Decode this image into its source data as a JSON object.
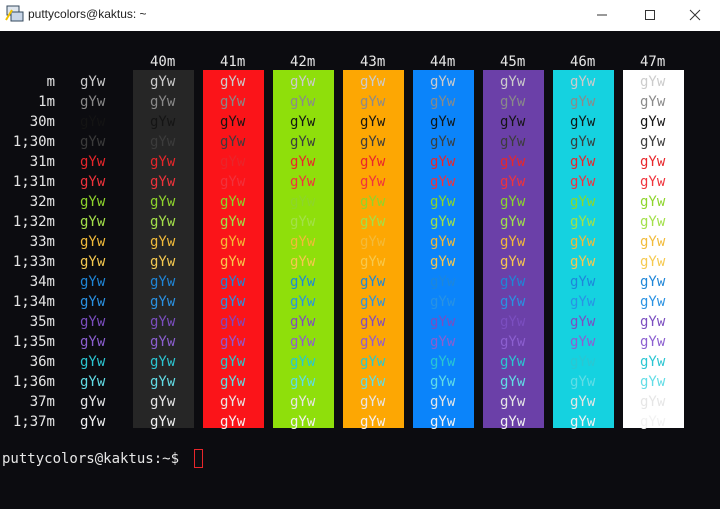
{
  "window": {
    "title": "puttycolors@kaktus: ~"
  },
  "terminal": {
    "column_headers": [
      "40m",
      "41m",
      "42m",
      "43m",
      "44m",
      "45m",
      "46m",
      "47m"
    ],
    "column_colors": [
      "#262626",
      "#fb1419",
      "#8fdf0b",
      "#fda703",
      "#0b84fa",
      "#6b40a8",
      "#15d2e0",
      "#ffffff"
    ],
    "rows": [
      {
        "label": "m",
        "color": "#cccccc",
        "cells": [
          "gYw",
          "gYw",
          "gYw",
          "gYw",
          "gYw",
          "gYw",
          "gYw",
          "gYw",
          "gYw"
        ]
      },
      {
        "label": "1m",
        "color": "#8a8a8a",
        "cells": [
          "gYw",
          "gYw",
          "gYw",
          "gYw",
          "gYw",
          "gYw",
          "gYw",
          "gYw",
          "gYw"
        ]
      },
      {
        "label": "30m",
        "color": "#141414",
        "cells": [
          "gYw",
          "gYw",
          "gYw",
          "gYw",
          "gYw",
          "gYw",
          "gYw",
          "gYw",
          "gYw"
        ]
      },
      {
        "label": "1;30m",
        "color": "#3c3c3c",
        "cells": [
          "gYw",
          "gYw",
          "gYw",
          "gYw",
          "gYw",
          "gYw",
          "gYw",
          "gYw",
          "gYw"
        ]
      },
      {
        "label": "31m",
        "color": "#e8262b",
        "cells": [
          "gYw",
          "gYw",
          "gYw",
          "gYw",
          "gYw",
          "gYw",
          "gYw",
          "gYw",
          "gYw"
        ]
      },
      {
        "label": "1;31m",
        "color": "#f0333c",
        "cells": [
          "gYw",
          "gYw",
          "gYw",
          "gYw",
          "gYw",
          "gYw",
          "gYw",
          "gYw",
          "gYw"
        ]
      },
      {
        "label": "32m",
        "color": "#8ed52c",
        "cells": [
          "gYw",
          "gYw",
          "gYw",
          "gYw",
          "gYw",
          "gYw",
          "gYw",
          "gYw",
          "gYw"
        ]
      },
      {
        "label": "1;32m",
        "color": "#a3e04a",
        "cells": [
          "gYw",
          "gYw",
          "gYw",
          "gYw",
          "gYw",
          "gYw",
          "gYw",
          "gYw",
          "gYw"
        ]
      },
      {
        "label": "33m",
        "color": "#f2bb3a",
        "cells": [
          "gYw",
          "gYw",
          "gYw",
          "gYw",
          "gYw",
          "gYw",
          "gYw",
          "gYw",
          "gYw"
        ]
      },
      {
        "label": "1;33m",
        "color": "#f6c94f",
        "cells": [
          "gYw",
          "gYw",
          "gYw",
          "gYw",
          "gYw",
          "gYw",
          "gYw",
          "gYw",
          "gYw"
        ]
      },
      {
        "label": "34m",
        "color": "#1f86d8",
        "cells": [
          "gYw",
          "gYw",
          "gYw",
          "gYw",
          "gYw",
          "gYw",
          "gYw",
          "gYw",
          "gYw"
        ]
      },
      {
        "label": "1;34m",
        "color": "#2a92e2",
        "cells": [
          "gYw",
          "gYw",
          "gYw",
          "gYw",
          "gYw",
          "gYw",
          "gYw",
          "gYw",
          "gYw"
        ]
      },
      {
        "label": "35m",
        "color": "#7b4ec0",
        "cells": [
          "gYw",
          "gYw",
          "gYw",
          "gYw",
          "gYw",
          "gYw",
          "gYw",
          "gYw",
          "gYw"
        ]
      },
      {
        "label": "1;35m",
        "color": "#8c5fd0",
        "cells": [
          "gYw",
          "gYw",
          "gYw",
          "gYw",
          "gYw",
          "gYw",
          "gYw",
          "gYw",
          "gYw"
        ]
      },
      {
        "label": "36m",
        "color": "#2bc6d2",
        "cells": [
          "gYw",
          "gYw",
          "gYw",
          "gYw",
          "gYw",
          "gYw",
          "gYw",
          "gYw",
          "gYw"
        ]
      },
      {
        "label": "1;36m",
        "color": "#62dde6",
        "cells": [
          "gYw",
          "gYw",
          "gYw",
          "gYw",
          "gYw",
          "gYw",
          "gYw",
          "gYw",
          "gYw"
        ]
      },
      {
        "label": "37m",
        "color": "#e6e6e6",
        "cells": [
          "gYw",
          "gYw",
          "gYw",
          "gYw",
          "gYw",
          "gYw",
          "gYw",
          "gYw",
          "gYw"
        ]
      },
      {
        "label": "1;37m",
        "color": "#f2f2f2",
        "cells": [
          "gYw",
          "gYw",
          "gYw",
          "gYw",
          "gYw",
          "gYw",
          "gYw",
          "gYw",
          "gYw"
        ]
      }
    ],
    "prompt": "puttycolors@kaktus:~$"
  }
}
